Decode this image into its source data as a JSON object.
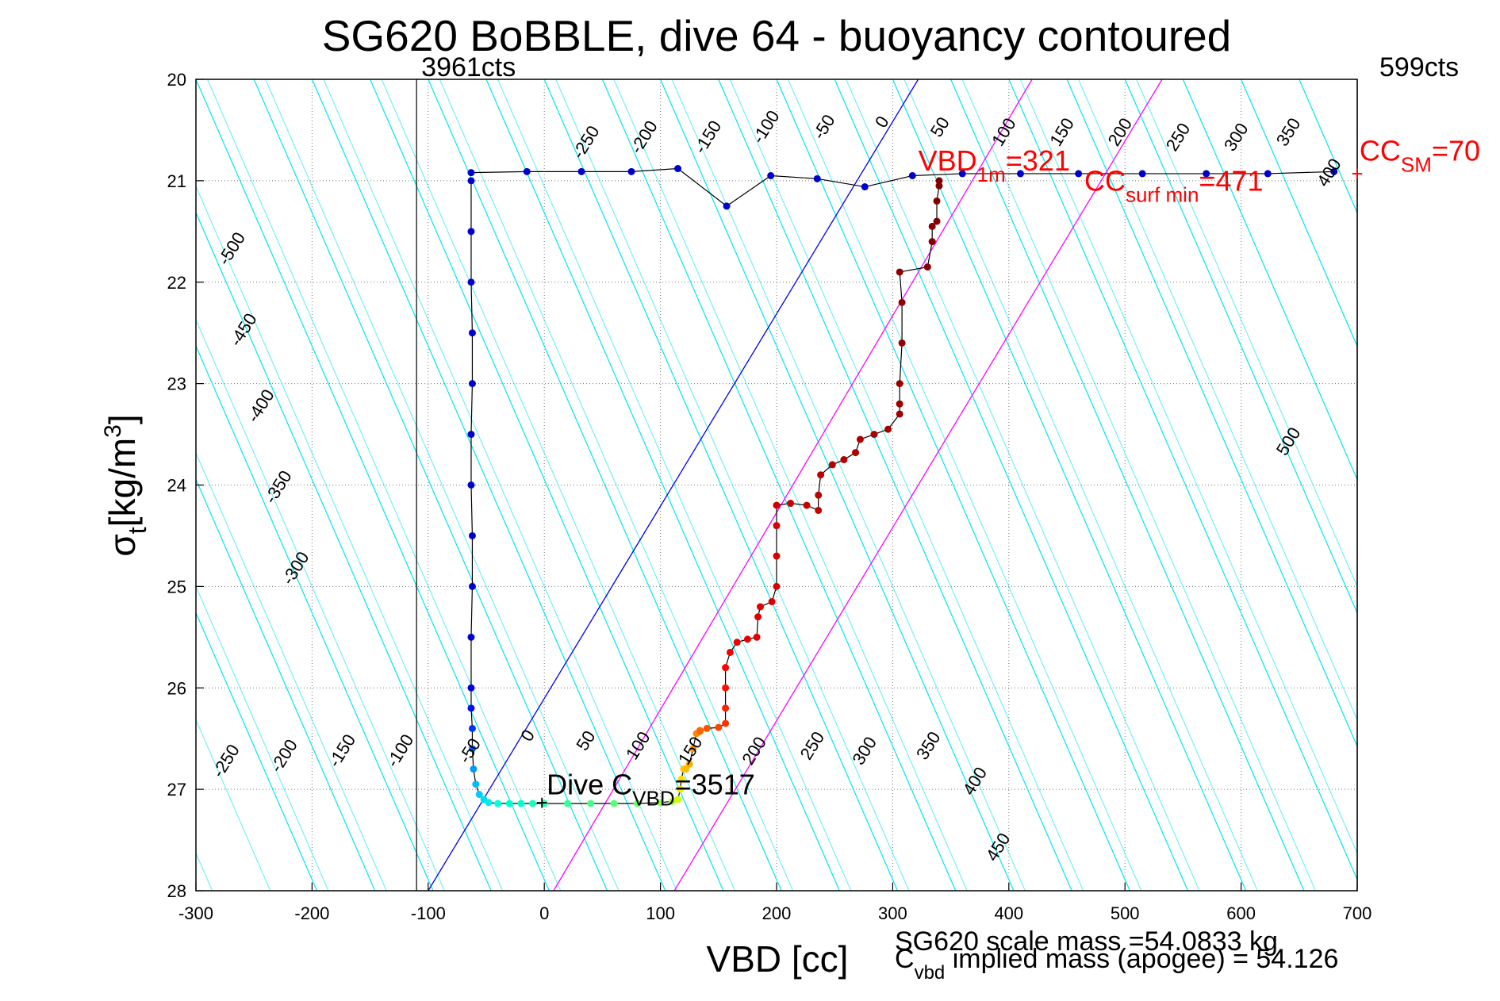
{
  "chart_data": {
    "type": "scatter",
    "title": "SG620 BoBBLE, dive 64 - buoyancy contoured",
    "xlabel": "VBD [cc]",
    "ylabel_main": "σ",
    "ylabel_sub": "t",
    "ylabel_unit": "[kg/m",
    "ylabel_sup": "3",
    "ylabel_close": "]",
    "xlim": [
      -300,
      700
    ],
    "ylim": [
      28,
      20
    ],
    "y_reversed": true,
    "grid": true,
    "x_ticks": [
      -300,
      -200,
      -100,
      0,
      100,
      200,
      300,
      400,
      500,
      600,
      700
    ],
    "y_ticks": [
      20,
      21,
      22,
      23,
      24,
      25,
      26,
      27,
      28
    ],
    "colors": {
      "contour": "#00e5ee",
      "magenta": "#ff00ff",
      "blue_line": "#0000ee",
      "annotation_red": "#ff0000",
      "trace": "#000000"
    },
    "vertical_markers": [
      {
        "x": -110,
        "label": "3961cts",
        "position": "left"
      },
      {
        "x": 700,
        "label": "599cts",
        "position": "right"
      }
    ],
    "contours": {
      "slope_sigma_per_cc": 0.0263,
      "spacing_cc": 50,
      "offsets": [
        -500,
        -450,
        -400,
        -350,
        -300,
        -250,
        -200,
        -150,
        -100,
        -50,
        0,
        50,
        100,
        150,
        200,
        250,
        300,
        350,
        400,
        450,
        500,
        550,
        600,
        650,
        700,
        750,
        800,
        850,
        900,
        950
      ],
      "labels_upper": [
        {
          "text": "-250",
          "x": 40,
          "y": 20.65
        },
        {
          "text": "-200",
          "x": 90,
          "y": 20.6
        },
        {
          "text": "-150",
          "x": 145,
          "y": 20.6
        },
        {
          "text": "-100",
          "x": 195,
          "y": 20.5
        },
        {
          "text": "-50",
          "x": 245,
          "y": 20.5
        },
        {
          "text": "0",
          "x": 295,
          "y": 20.45
        },
        {
          "text": "50",
          "x": 345,
          "y": 20.5
        },
        {
          "text": "100",
          "x": 400,
          "y": 20.55
        },
        {
          "text": "150",
          "x": 450,
          "y": 20.55
        },
        {
          "text": "200",
          "x": 500,
          "y": 20.55
        },
        {
          "text": "250",
          "x": 550,
          "y": 20.6
        },
        {
          "text": "300",
          "x": 600,
          "y": 20.6
        },
        {
          "text": "350",
          "x": 645,
          "y": 20.55
        },
        {
          "text": "400",
          "x": 680,
          "y": 20.95
        }
      ],
      "labels_left": [
        {
          "text": "-500",
          "x": -265,
          "y": 21.7
        },
        {
          "text": "-450",
          "x": -255,
          "y": 22.5
        },
        {
          "text": "-400",
          "x": -240,
          "y": 23.25
        },
        {
          "text": "-350",
          "x": -225,
          "y": 24.05
        },
        {
          "text": "-300",
          "x": -210,
          "y": 24.85
        }
      ],
      "labels_lower": [
        {
          "text": "-250",
          "x": -270,
          "y": 26.75
        },
        {
          "text": "-200",
          "x": -220,
          "y": 26.7
        },
        {
          "text": "-150",
          "x": -170,
          "y": 26.65
        },
        {
          "text": "-100",
          "x": -120,
          "y": 26.65
        },
        {
          "text": "-50",
          "x": -60,
          "y": 26.65
        },
        {
          "text": "0",
          "x": -10,
          "y": 26.5
        },
        {
          "text": "50",
          "x": 40,
          "y": 26.55
        },
        {
          "text": "100",
          "x": 85,
          "y": 26.6
        },
        {
          "text": "150",
          "x": 130,
          "y": 26.65
        },
        {
          "text": "200",
          "x": 185,
          "y": 26.65
        },
        {
          "text": "250",
          "x": 235,
          "y": 26.6
        },
        {
          "text": "300",
          "x": 280,
          "y": 26.65
        },
        {
          "text": "350",
          "x": 335,
          "y": 26.6
        },
        {
          "text": "400",
          "x": 375,
          "y": 26.95
        },
        {
          "text": "450",
          "x": 395,
          "y": 27.6
        },
        {
          "text": "500",
          "x": 645,
          "y": 23.6
        }
      ]
    },
    "reference_lines": [
      {
        "name": "blue",
        "x_at_top": 322,
        "x_at_bottom": -100
      },
      {
        "name": "magenta-1",
        "x_at_top": 420,
        "x_at_bottom": 8
      },
      {
        "name": "magenta-2",
        "x_at_top": 532,
        "x_at_bottom": 112
      }
    ],
    "series": [
      {
        "name": "surface-transect",
        "color": "#0000cc",
        "line": true,
        "x": [
          -63,
          -15,
          32,
          75,
          115,
          157,
          195,
          235,
          276,
          317,
          360,
          410,
          460,
          515,
          570,
          623,
          680
        ],
        "y": [
          20.92,
          20.91,
          20.91,
          20.91,
          20.88,
          21.25,
          20.95,
          20.98,
          21.06,
          20.95,
          20.93,
          20.93,
          20.93,
          20.93,
          20.93,
          20.93,
          20.91
        ]
      },
      {
        "name": "descent",
        "line": true,
        "x": [
          -63,
          -63,
          -63,
          -62,
          -62,
          -63,
          -63,
          -62,
          -62,
          -63,
          -63,
          -63,
          -62,
          -62,
          -61,
          -59,
          -56,
          -52,
          -48,
          -40,
          -30,
          -20,
          -10,
          0,
          20,
          40,
          60,
          80,
          100,
          110,
          115,
          117,
          118,
          120,
          122,
          125,
          128,
          131,
          134,
          134,
          140,
          150,
          156,
          156,
          156,
          156,
          160,
          166,
          175,
          183,
          184,
          186,
          196,
          200,
          200,
          200,
          200,
          212,
          226,
          236,
          236,
          238,
          248,
          258,
          268,
          272,
          284,
          296,
          306,
          306,
          306,
          308,
          308,
          306,
          330,
          334,
          334,
          338,
          338,
          340,
          340
        ],
        "y": [
          21.0,
          21.5,
          22.0,
          22.5,
          23.0,
          23.5,
          24.0,
          24.5,
          25.0,
          25.5,
          26.0,
          26.2,
          26.4,
          26.6,
          26.8,
          26.95,
          27.05,
          27.1,
          27.13,
          27.14,
          27.14,
          27.14,
          27.14,
          27.14,
          27.14,
          27.14,
          27.14,
          27.14,
          27.13,
          27.12,
          27.1,
          27.0,
          26.9,
          26.8,
          26.8,
          26.75,
          26.6,
          26.45,
          26.43,
          26.42,
          26.4,
          26.39,
          26.35,
          26.2,
          26.0,
          25.8,
          25.65,
          25.55,
          25.52,
          25.5,
          25.3,
          25.2,
          25.15,
          25.0,
          24.7,
          24.4,
          24.2,
          24.18,
          24.2,
          24.25,
          24.1,
          23.9,
          23.8,
          23.75,
          23.68,
          23.55,
          23.5,
          23.45,
          23.3,
          23.2,
          23.0,
          22.6,
          22.2,
          21.9,
          21.85,
          21.6,
          21.45,
          21.4,
          21.2,
          21.05,
          21.0
        ],
        "colors": [
          "#0000cc",
          "#0000cc",
          "#0000cc",
          "#0000cc",
          "#0000cc",
          "#0000cc",
          "#0000cc",
          "#0000cc",
          "#0000cc",
          "#0000cc",
          "#0000dd",
          "#0010ee",
          "#0033ff",
          "#0066ff",
          "#0099ff",
          "#00bbff",
          "#00ccff",
          "#00ddee",
          "#00eeee",
          "#00ffdd",
          "#00ffcc",
          "#00ffcc",
          "#11ffbb",
          "#22ffaa",
          "#33ff99",
          "#44ff88",
          "#55ff77",
          "#66ff66",
          "#88ff44",
          "#aaff22",
          "#ccff00",
          "#eeee00",
          "#ffdd00",
          "#ffcc00",
          "#ffbb00",
          "#ffaa00",
          "#ff9900",
          "#ff8800",
          "#ff7700",
          "#ff6600",
          "#ff5500",
          "#ff4400",
          "#ff3300",
          "#ff2200",
          "#ff1100",
          "#ff0000",
          "#f00000",
          "#ee0000",
          "#e80000",
          "#e40000",
          "#e00000",
          "#dd0000",
          "#da0000",
          "#d80000",
          "#d50000",
          "#d20000",
          "#d00000",
          "#cc0000",
          "#c80000",
          "#c40000",
          "#c00000",
          "#bb0000",
          "#b80000",
          "#b40000",
          "#b00000",
          "#ac0000",
          "#a80000",
          "#a40000",
          "#a00000",
          "#9c0000",
          "#980000",
          "#940000",
          "#900000",
          "#8c0000",
          "#880000",
          "#860000",
          "#840000",
          "#820000",
          "#800000",
          "#800000",
          "#800000"
        ]
      }
    ],
    "annotations": [
      {
        "name": "vbd-1m",
        "main": "VBD",
        "sub": "1m",
        "value": "=321",
        "x": 322,
        "y": 20.9,
        "color": "#ff0000"
      },
      {
        "name": "cc-surf-min",
        "main": "CC",
        "sub": "surf min",
        "value": "=471",
        "x": 465,
        "y": 21.1,
        "color": "#ff0000"
      },
      {
        "name": "cc-sm",
        "main": "CC",
        "sub": "SM",
        "value": "=70",
        "x": 702,
        "y": 20.8,
        "color": "#ff0000"
      },
      {
        "name": "dive-cvbd",
        "main": "Dive C",
        "sub": "VBD",
        "value": "=3517",
        "x": 2,
        "y": 27.05,
        "color": "#000000"
      }
    ],
    "cc_sm_marker": {
      "x": 700,
      "y": 20.94
    },
    "dive_cvbd_marker": {
      "x": -2,
      "y": 27.14
    },
    "footer": {
      "scale_mass": "SG620 scale mass =54.0833 kg",
      "implied_main": "C",
      "implied_sub": "vbd",
      "implied_rest": " implied mass (apogee) = 54.126"
    }
  }
}
